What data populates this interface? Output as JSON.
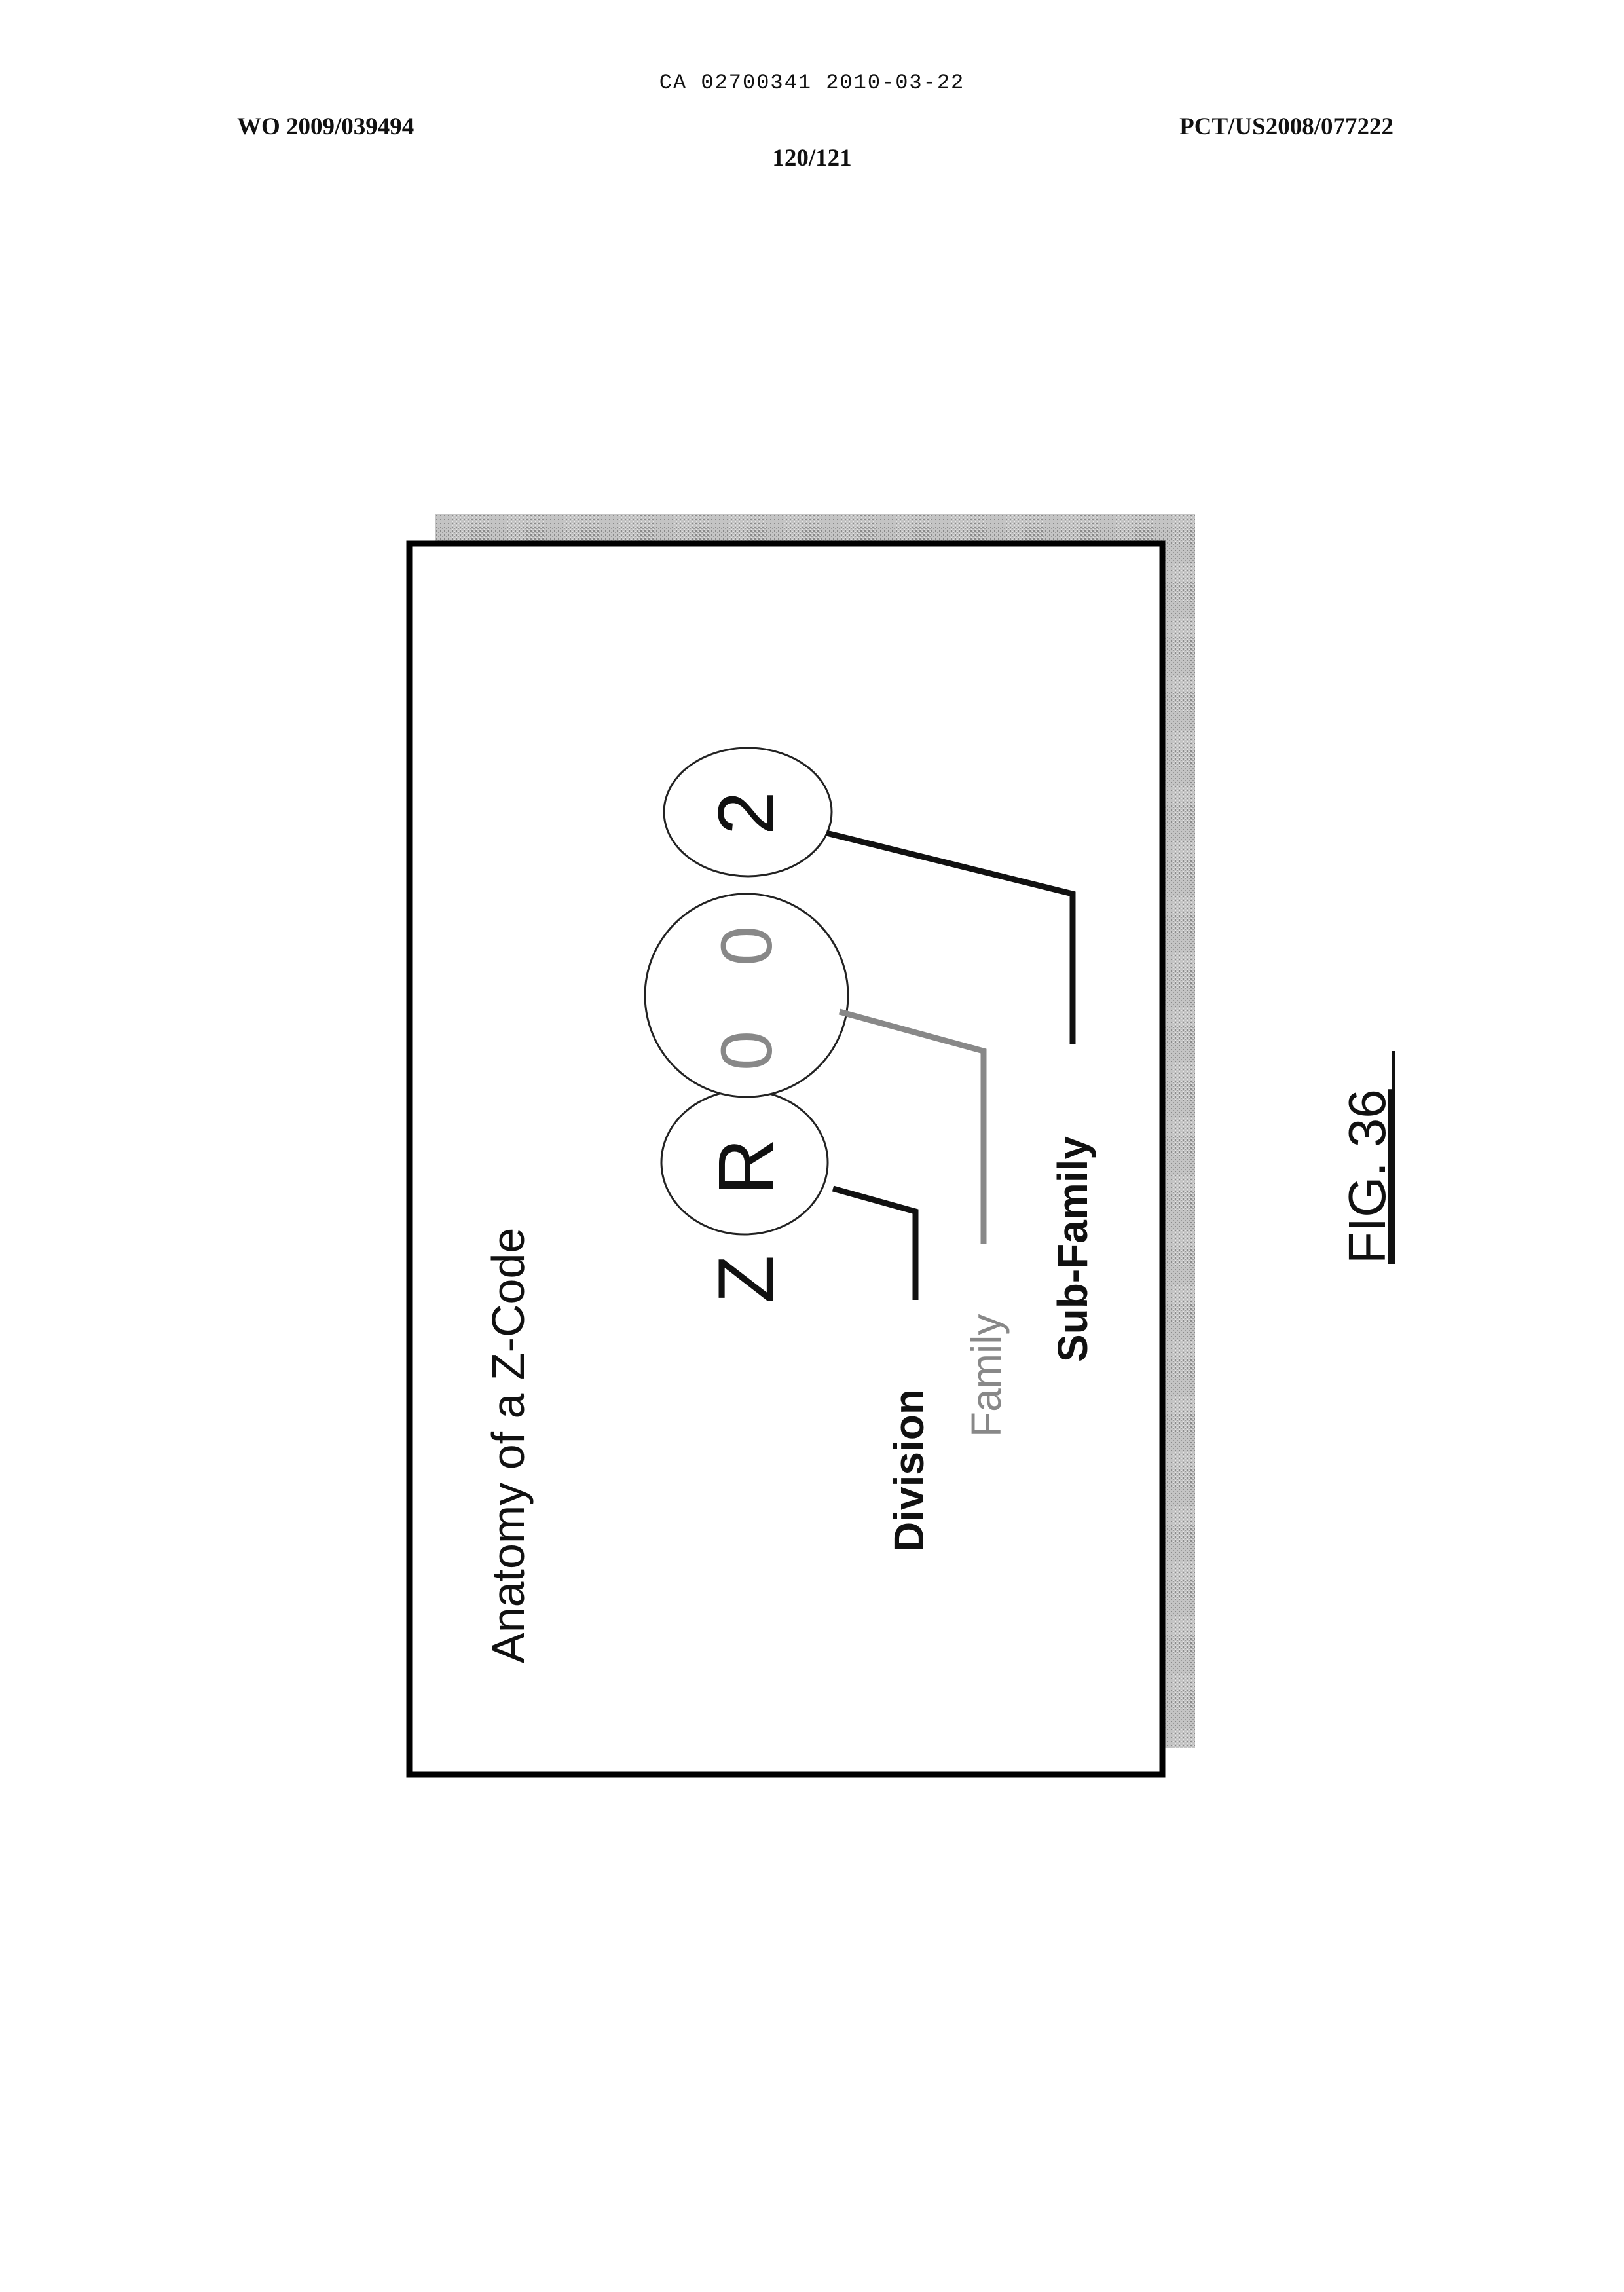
{
  "header": {
    "ca_number": "CA 02700341 2010-03-22",
    "wo_number": "WO 2009/039494",
    "pct_number": "PCT/US2008/077222",
    "page_number": "120/121"
  },
  "figure": {
    "title": "Anatomy of a Z-Code",
    "code_characters": [
      "Z",
      "R",
      "0",
      "0",
      "2"
    ],
    "labels": {
      "division": "Division",
      "family": "Family",
      "sub_family": "Sub-Family"
    },
    "caption": "FIG. 36",
    "colors": {
      "shadow": "#b8b8b8",
      "frame": "#000000",
      "family_gray": "#888888",
      "connector_dark": "#111111"
    }
  }
}
